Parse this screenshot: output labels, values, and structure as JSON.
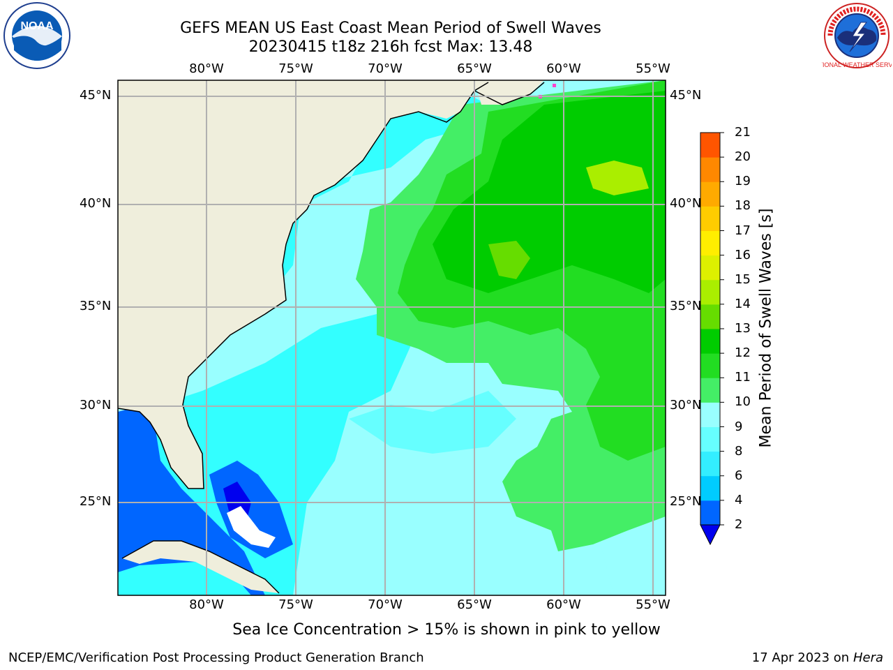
{
  "header": {
    "title_line1": "GEFS MEAN US East Coast Mean Period of Swell Waves",
    "title_line2": "20230415 t18z 216h fcst   Max: 13.48"
  },
  "map": {
    "lon_labels": [
      "80°W",
      "75°W",
      "70°W",
      "65°W",
      "60°W",
      "55°W"
    ],
    "lat_labels": [
      "45°N",
      "40°N",
      "35°N",
      "30°N",
      "25°N"
    ],
    "colors": {
      "land": "#efeedc",
      "grid": "#b0b0b0",
      "coast": "#000000",
      "ice": "#ff44cc"
    }
  },
  "colorbar": {
    "title": "Mean Period of Swell Waves [s]",
    "tick_labels": [
      "2",
      "4",
      "6",
      "8",
      "9",
      "10",
      "11",
      "12",
      "13",
      "14",
      "15",
      "16",
      "17",
      "18",
      "19",
      "20",
      "21"
    ],
    "colors": [
      "#0066ff",
      "#00ccff",
      "#33eeff",
      "#66ffff",
      "#99ffff",
      "#44ee66",
      "#22dd22",
      "#00cc00",
      "#66dd00",
      "#aaee00",
      "#ddf000",
      "#ffee00",
      "#ffcc00",
      "#ffaa00",
      "#ff8800",
      "#ff5500",
      "#ff2200",
      "#ee0000"
    ],
    "under_color": "#0000ee"
  },
  "notes": {
    "ice_note": "Sea Ice Concentration > 15% is shown in pink to yellow"
  },
  "footer": {
    "left": "NCEP/EMC/Verification Post Processing Product Generation Branch",
    "date": "17 Apr 2023 on ",
    "machine": "Hera"
  },
  "logos": {
    "noaa_text": "NOAA",
    "nws_text": "NATIONAL WEATHER SERVICE"
  }
}
